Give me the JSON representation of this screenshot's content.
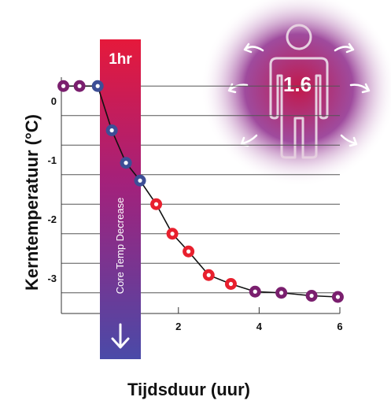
{
  "chart_data": {
    "type": "line",
    "xlabel": "Tijdsduur (uur)",
    "ylabel": "Kerntemperatuur (°C)",
    "xlim": [
      -0.9,
      6
    ],
    "ylim": [
      -3.6,
      0.4
    ],
    "x_ticks": [
      "2",
      "4",
      "6"
    ],
    "y_ticks": [
      "0",
      "-1",
      "-2",
      "-3"
    ],
    "grid": true,
    "series": [
      {
        "points": [
          {
            "x": -0.85,
            "y": 0.25,
            "color": "#7a1f6e"
          },
          {
            "x": -0.45,
            "y": 0.25,
            "color": "#7a1f6e"
          },
          {
            "x": 0.0,
            "y": 0.25,
            "color": "#3d4e96"
          },
          {
            "x": 0.35,
            "y": -0.5,
            "color": "#3d4e96"
          },
          {
            "x": 0.7,
            "y": -1.05,
            "color": "#3d4e96"
          },
          {
            "x": 1.05,
            "y": -1.35,
            "color": "#3d4e96"
          },
          {
            "x": 1.45,
            "y": -1.75,
            "color": "#e8202e"
          },
          {
            "x": 1.85,
            "y": -2.25,
            "color": "#e8202e"
          },
          {
            "x": 2.25,
            "y": -2.55,
            "color": "#e8202e"
          },
          {
            "x": 2.75,
            "y": -2.95,
            "color": "#e8202e"
          },
          {
            "x": 3.3,
            "y": -3.1,
            "color": "#e8202e"
          },
          {
            "x": 3.9,
            "y": -3.23,
            "color": "#7a1f6e"
          },
          {
            "x": 4.55,
            "y": -3.25,
            "color": "#7a1f6e"
          },
          {
            "x": 5.3,
            "y": -3.3,
            "color": "#7a1f6e"
          },
          {
            "x": 5.95,
            "y": -3.32,
            "color": "#7a1f6e"
          }
        ]
      }
    ]
  },
  "band": {
    "top_label": "1hr",
    "vertical_label": "Core Temp Decrease",
    "arrow_icon": "arrow-down-icon",
    "gradient_top": "#e5193b",
    "gradient_mid": "#a3217b",
    "gradient_bottom": "#4a4aa8"
  },
  "figure": {
    "value": "1.6",
    "icon": "person-outline-icon",
    "glow_inner": "#c3184a",
    "glow_outer": "#8e2b8c"
  }
}
